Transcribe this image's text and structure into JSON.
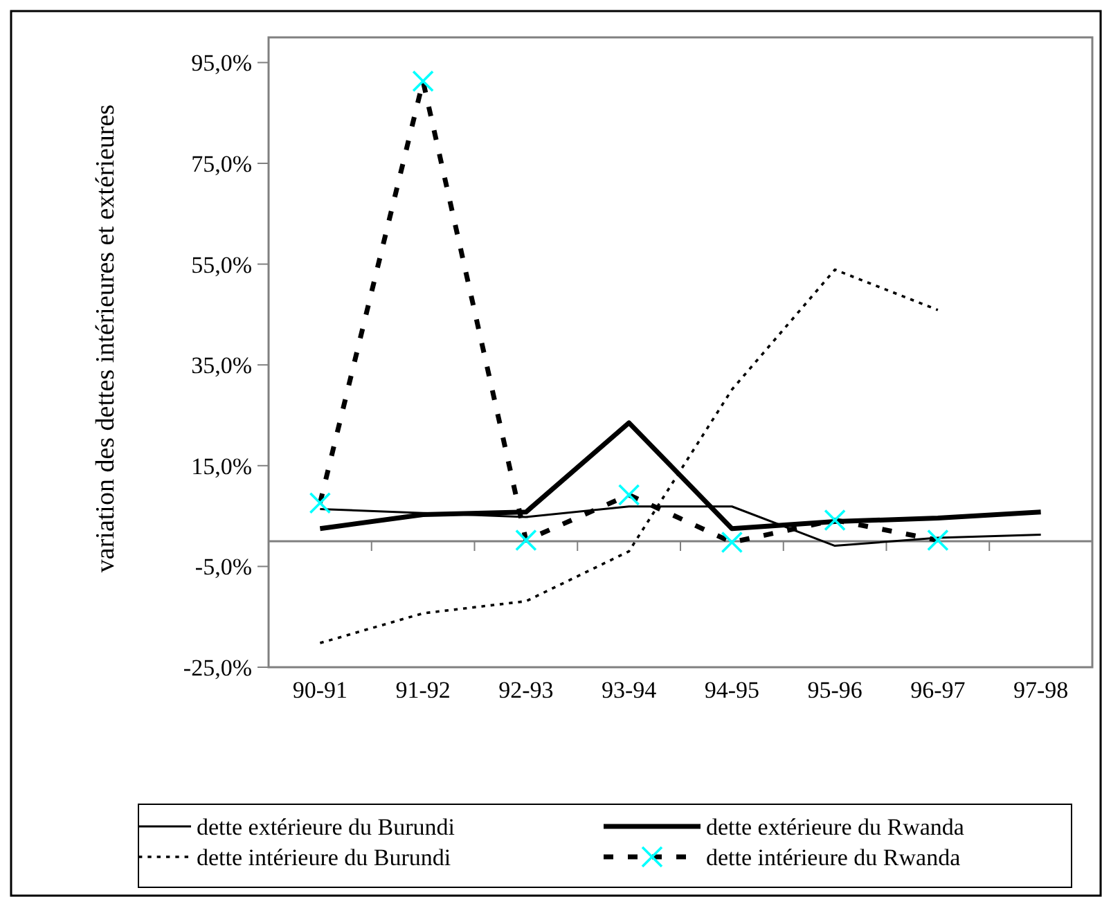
{
  "chart_data": {
    "type": "line",
    "ylabel": "variation des dettes intérieures et extérieures",
    "categories": [
      "90-91",
      "91-92",
      "92-93",
      "93-94",
      "94-95",
      "95-96",
      "96-97",
      "97-98"
    ],
    "series": [
      {
        "name": "dette extérieure du Burundi",
        "color": "#000000",
        "line_style": "solid",
        "values": [
          6.4,
          5.6,
          4.8,
          6.9,
          6.9,
          -0.9,
          0.7,
          1.3
        ]
      },
      {
        "name": "dette extérieure du Rwanda",
        "color": "#000000",
        "line_style": "solid",
        "values": [
          2.5,
          5.3,
          5.8,
          23.5,
          2.5,
          3.9,
          4.6,
          5.8
        ]
      },
      {
        "name": "dette intérieure du Burundi",
        "color": "#000000",
        "line_style": "dotted",
        "values": [
          -20.2,
          -14.3,
          -11.9,
          -2.0,
          30.1,
          53.9,
          45.9,
          null
        ]
      },
      {
        "name": "dette intérieure du Rwanda",
        "color": "#000000",
        "line_style": "dashed",
        "marker": "cross",
        "values": [
          7.6,
          91.3,
          0.2,
          9.2,
          -0.2,
          4.2,
          0.2,
          null
        ]
      }
    ],
    "ylim": [
      -25,
      100
    ],
    "yticks": [
      {
        "value": -25,
        "label": "-25,0%"
      },
      {
        "value": -5,
        "label": "-5,0%"
      },
      {
        "value": 15,
        "label": "15,0%"
      },
      {
        "value": 35,
        "label": "35,0%"
      },
      {
        "value": 55,
        "label": "55,0%"
      },
      {
        "value": 75,
        "label": "75,0%"
      },
      {
        "value": 95,
        "label": "95,0%"
      }
    ],
    "grid": false,
    "legend": "bottom"
  }
}
